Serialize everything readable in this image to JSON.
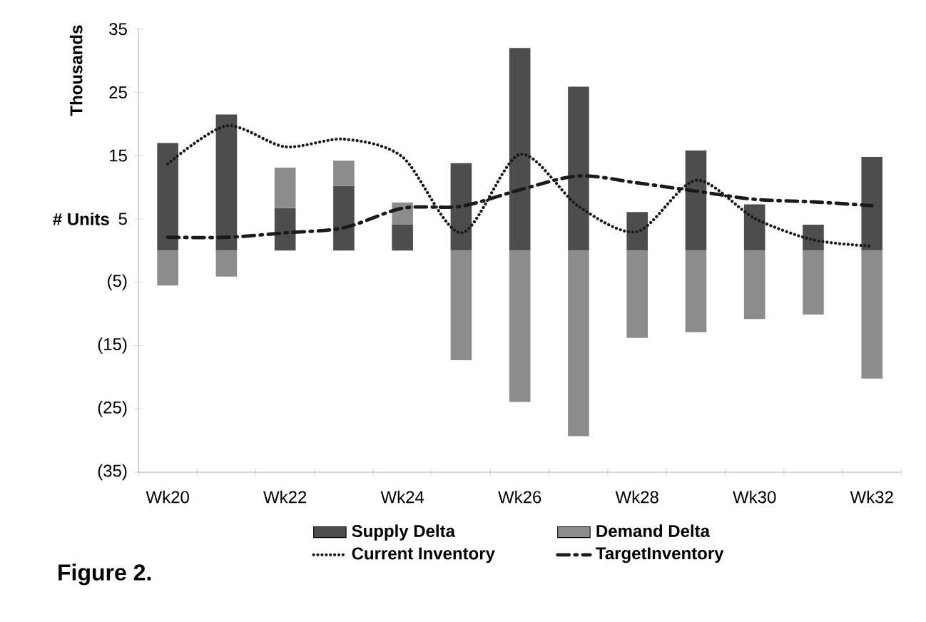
{
  "chart_data": {
    "type": "bar",
    "stacked": true,
    "ylabel": "# Units",
    "annotations": [
      "Thousands",
      "Figure 2."
    ],
    "categories": [
      "Wk20",
      null,
      "Wk22",
      null,
      "Wk24",
      null,
      "Wk26",
      null,
      "Wk28",
      null,
      "Wk30",
      null,
      "Wk32"
    ],
    "series": [
      {
        "name": "Supply Delta",
        "color": "#4d4d4d",
        "values": [
          17.0,
          21.5,
          6.7,
          10.2,
          4.1,
          13.8,
          32.0,
          25.9,
          6.1,
          15.8,
          7.3,
          4.1,
          14.8
        ]
      },
      {
        "name": "Demand Delta",
        "color": "#8c8c8c",
        "values": [
          -5.5,
          -4.1,
          6.4,
          4.0,
          3.5,
          -17.3,
          -23.9,
          -29.3,
          -13.8,
          -12.9,
          -10.8,
          -10.1,
          -20.2
        ]
      },
      {
        "name": "Current Inventory",
        "type": "line",
        "line_style": "dotted",
        "color": "#1a1a1a",
        "values": [
          13.7,
          19.7,
          16.4,
          17.6,
          14.8,
          2.8,
          15.2,
          7.0,
          3.0,
          11.1,
          5.1,
          1.7,
          0.7
        ]
      },
      {
        "name": "TargetInventory",
        "type": "line",
        "line_style": "dashed",
        "color": "#1a1a1a",
        "values": [
          2.1,
          2.1,
          2.8,
          3.6,
          6.7,
          7.0,
          9.6,
          11.8,
          10.7,
          9.4,
          8.1,
          7.7,
          7.1
        ]
      }
    ],
    "ylim": [
      -35,
      35
    ],
    "yticks": [
      {
        "value": -35,
        "label": "(35)"
      },
      {
        "value": -25,
        "label": "(25)"
      },
      {
        "value": -15,
        "label": "(15)"
      },
      {
        "value": -5,
        "label": "(5)"
      },
      5,
      15,
      25,
      35
    ],
    "legend": "bottom"
  }
}
